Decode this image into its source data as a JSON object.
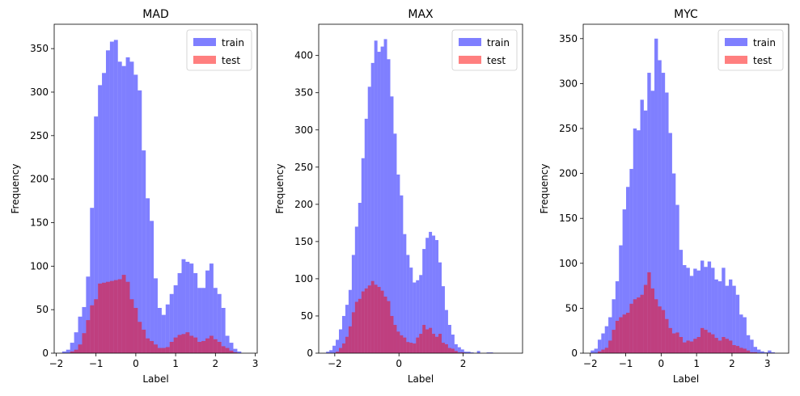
{
  "colors": {
    "train": "#0000ff",
    "test": "#ff0000",
    "overlap": "#bf3f7f"
  },
  "chart_data": [
    {
      "type": "bar",
      "title": "MAD",
      "xlabel": "Label",
      "ylabel": "Frequency",
      "xlim": [
        -2.05,
        3.05
      ],
      "ylim": [
        0,
        378
      ],
      "xticks": [
        -2,
        -1,
        0,
        1,
        2,
        3
      ],
      "yticks": [
        0,
        50,
        100,
        150,
        200,
        250,
        300,
        350
      ],
      "legend": {
        "position": "upper-right",
        "entries": [
          "train",
          "test"
        ]
      },
      "series": [
        {
          "name": "train",
          "bin_start": -1.85,
          "bin_width": 0.1,
          "values": [
            2,
            4,
            12,
            24,
            42,
            53,
            88,
            167,
            272,
            308,
            322,
            348,
            358,
            360,
            335,
            330,
            340,
            335,
            320,
            302,
            233,
            178,
            152,
            86,
            52,
            44,
            56,
            68,
            78,
            92,
            108,
            105,
            103,
            92,
            75,
            75,
            95,
            103,
            75,
            68,
            52,
            20,
            12,
            5,
            2
          ]
        },
        {
          "name": "test",
          "bin_start": -1.85,
          "bin_width": 0.1,
          "values": [
            0,
            0,
            2,
            4,
            10,
            23,
            38,
            55,
            62,
            80,
            81,
            82,
            83,
            84,
            85,
            90,
            82,
            62,
            52,
            36,
            27,
            17,
            14,
            10,
            6,
            6,
            7,
            13,
            18,
            21,
            22,
            24,
            20,
            18,
            13,
            14,
            17,
            20,
            16,
            13,
            8,
            6,
            3,
            1,
            0
          ]
        }
      ]
    },
    {
      "type": "bar",
      "title": "MAX",
      "xlabel": "Label",
      "ylabel": "Frequency",
      "xlim": [
        -2.5,
        3.85
      ],
      "ylim": [
        0,
        442
      ],
      "xticks": [
        -2,
        0,
        2
      ],
      "yticks": [
        0,
        50,
        100,
        150,
        200,
        250,
        300,
        350,
        400
      ],
      "legend": {
        "position": "upper-right",
        "entries": [
          "train",
          "test"
        ]
      },
      "series": [
        {
          "name": "train",
          "bin_start": -2.27,
          "bin_width": 0.1,
          "values": [
            2,
            4,
            10,
            18,
            32,
            50,
            65,
            85,
            132,
            170,
            202,
            262,
            315,
            358,
            390,
            420,
            405,
            412,
            422,
            395,
            345,
            295,
            240,
            212,
            160,
            132,
            115,
            95,
            98,
            105,
            140,
            155,
            163,
            158,
            152,
            122,
            90,
            58,
            38,
            25,
            12,
            8,
            5,
            2,
            2,
            1,
            0,
            3,
            0,
            0,
            1,
            1
          ]
        },
        {
          "name": "test",
          "bin_start": -2.27,
          "bin_width": 0.1,
          "values": [
            0,
            0,
            0,
            2,
            7,
            13,
            22,
            36,
            55,
            69,
            73,
            83,
            87,
            91,
            97,
            92,
            89,
            84,
            76,
            70,
            50,
            38,
            29,
            24,
            21,
            15,
            14,
            13,
            21,
            26,
            38,
            32,
            34,
            26,
            22,
            26,
            14,
            12,
            7,
            6,
            3,
            1,
            1,
            0,
            0,
            0,
            0,
            0,
            0,
            0,
            0,
            0
          ]
        }
      ]
    },
    {
      "type": "bar",
      "title": "MYC",
      "xlabel": "Label",
      "ylabel": "Frequency",
      "xlim": [
        -2.2,
        3.6
      ],
      "ylim": [
        0,
        366
      ],
      "xticks": [
        -2,
        -1,
        0,
        1,
        2,
        3
      ],
      "yticks": [
        0,
        50,
        100,
        150,
        200,
        250,
        300,
        350
      ],
      "legend": {
        "position": "upper-right",
        "entries": [
          "train",
          "test"
        ]
      },
      "series": [
        {
          "name": "train",
          "bin_start": -1.99,
          "bin_width": 0.1,
          "values": [
            3,
            5,
            15,
            22,
            30,
            40,
            60,
            80,
            120,
            160,
            185,
            205,
            250,
            248,
            282,
            270,
            312,
            292,
            350,
            326,
            312,
            290,
            245,
            200,
            165,
            115,
            98,
            95,
            86,
            94,
            92,
            103,
            96,
            102,
            95,
            82,
            80,
            95,
            75,
            82,
            75,
            65,
            43,
            40,
            20,
            15,
            7,
            4,
            2,
            1,
            3,
            1,
            0,
            0
          ]
        },
        {
          "name": "test",
          "bin_start": -1.99,
          "bin_width": 0.1,
          "values": [
            0,
            0,
            2,
            4,
            6,
            14,
            26,
            36,
            40,
            43,
            45,
            55,
            60,
            62,
            65,
            76,
            90,
            72,
            60,
            52,
            48,
            38,
            28,
            22,
            23,
            18,
            12,
            14,
            13,
            16,
            18,
            28,
            26,
            23,
            21,
            17,
            14,
            18,
            16,
            14,
            9,
            8,
            6,
            5,
            3,
            1,
            1,
            0,
            0,
            0,
            0,
            0,
            0,
            0
          ]
        }
      ]
    }
  ]
}
